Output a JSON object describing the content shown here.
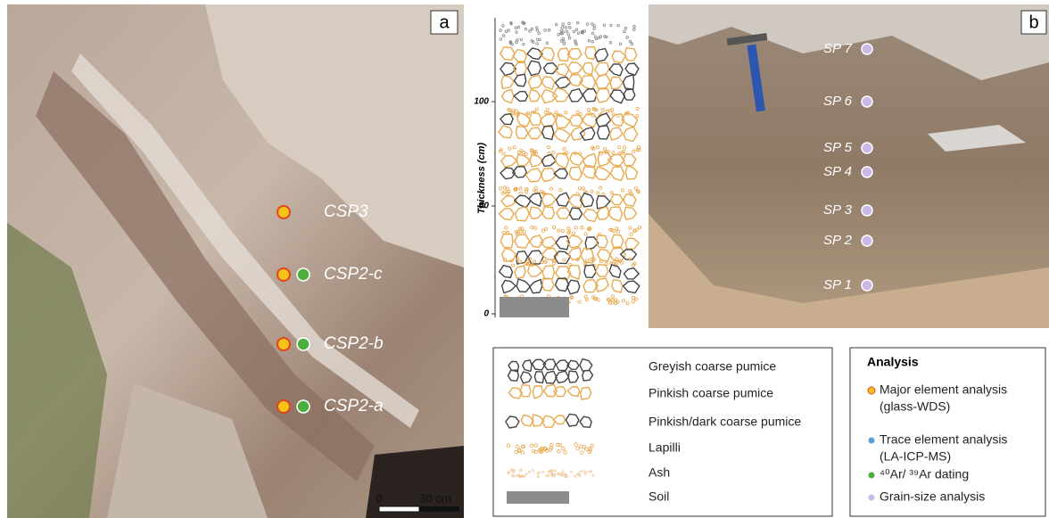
{
  "panel_a": {
    "label": "a",
    "samples": [
      "CSP3",
      "CSP2-c",
      "CSP2-b",
      "CSP2-a"
    ],
    "scale_bar": {
      "start": "0",
      "end": "30 cm"
    }
  },
  "panel_b": {
    "label": "b",
    "samples": [
      "SP 7",
      "SP 6",
      "SP 5",
      "SP 4",
      "SP 3",
      "SP 2",
      "SP 1"
    ]
  },
  "column": {
    "axis_label": "Thickness (cm)",
    "ticks": [
      "0",
      "50",
      "100"
    ]
  },
  "legend": {
    "items": [
      "Greyish coarse pumice",
      "Pinkish coarse pumice",
      "Pinkish/dark coarse pumice",
      "Lapilli",
      "Ash",
      "Soil"
    ]
  },
  "analysis": {
    "title": "Analysis",
    "items": [
      [
        "Major element analysis",
        "(glass-WDS)"
      ],
      [
        "Trace element analysis",
        "(LA-ICP-MS)"
      ],
      [
        "⁴⁰Ar/ ³⁹Ar dating"
      ],
      [
        "Grain-size analysis"
      ]
    ]
  }
}
